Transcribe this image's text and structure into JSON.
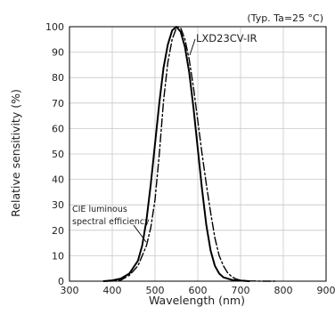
{
  "chart_data": {
    "type": "line",
    "note": "(Typ. Ta=25 °C)",
    "xlabel": "Wavelength (nm)",
    "ylabel": "Relative sensitivity (%)",
    "xlim": [
      300,
      900
    ],
    "ylim": [
      0,
      100
    ],
    "xticks": [
      300,
      400,
      500,
      600,
      700,
      800,
      900
    ],
    "yticks": [
      0,
      10,
      20,
      30,
      40,
      50,
      60,
      70,
      80,
      90,
      100
    ],
    "grid": true,
    "series": [
      {
        "name": "LXD23CV-IR",
        "style": "solid",
        "x": [
          380,
          400,
          420,
          440,
          460,
          470,
          480,
          490,
          500,
          510,
          520,
          530,
          540,
          550,
          560,
          570,
          580,
          590,
          600,
          610,
          620,
          630,
          640,
          650,
          660,
          680,
          700,
          720
        ],
        "y": [
          0,
          0.3,
          1,
          3,
          8,
          14,
          24,
          38,
          54,
          70,
          84,
          93,
          98.5,
          100,
          98,
          92,
          82,
          68,
          52,
          36,
          22,
          12,
          6,
          3,
          1.5,
          0.5,
          0.2,
          0
        ]
      },
      {
        "name": "CIE luminous spectral efficiency",
        "label_lines": [
          "CIE luminous",
          "spectral efficiency"
        ],
        "style": "dashdot",
        "x": [
          380,
          400,
          420,
          440,
          460,
          480,
          490,
          500,
          510,
          520,
          530,
          540,
          550,
          555,
          560,
          570,
          580,
          590,
          600,
          610,
          620,
          630,
          640,
          650,
          660,
          670,
          680,
          690,
          700,
          720,
          750,
          780
        ],
        "y": [
          0,
          0.04,
          0.4,
          2.3,
          6,
          14,
          21,
          32,
          50,
          71,
          86,
          95,
          99.5,
          100,
          99.5,
          95,
          87,
          76,
          63,
          50,
          38,
          27,
          17,
          10,
          6,
          3.2,
          1.7,
          0.8,
          0.4,
          0.1,
          0.01,
          0
        ]
      }
    ]
  }
}
